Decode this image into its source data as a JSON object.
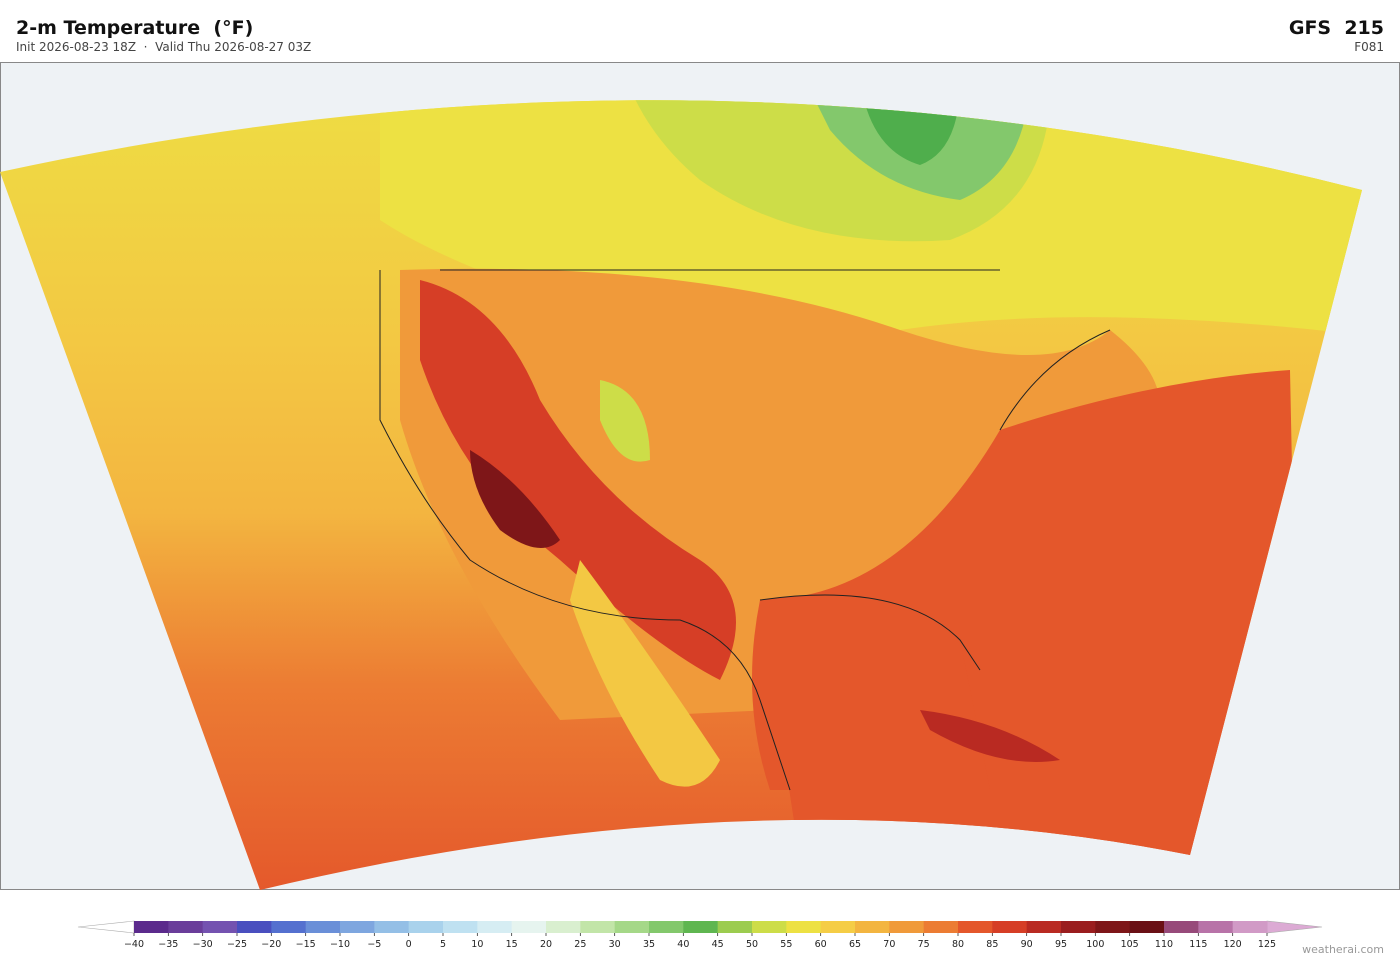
{
  "header": {
    "title": "2-m Temperature  (°F)",
    "subtitle": "Init 2026-08-23 18Z  ·  Valid Thu 2026-08-27 03Z",
    "model": "GFS  215",
    "forecast": "F081"
  },
  "colorbar": {
    "ticks": [
      {
        "value": -40,
        "label": "−40"
      },
      {
        "value": -35,
        "label": "−35"
      },
      {
        "value": -30,
        "label": "−30"
      },
      {
        "value": -25,
        "label": "−25"
      },
      {
        "value": -20,
        "label": "−20"
      },
      {
        "value": -15,
        "label": "−15"
      },
      {
        "value": -10,
        "label": "−10"
      },
      {
        "value": -5,
        "label": "−5"
      },
      0,
      5,
      10,
      15,
      20,
      25,
      30,
      35,
      40,
      45,
      50,
      55,
      60,
      65,
      70,
      75,
      80,
      85,
      90,
      95,
      100,
      105,
      110,
      115,
      120,
      125
    ],
    "colors": [
      "#5b2a8c",
      "#6a3d9a",
      "#7452b0",
      "#4a4fbf",
      "#5470cf",
      "#6a8fd8",
      "#7ea6df",
      "#94bfe6",
      "#a9d2ec",
      "#bfe1f1",
      "#d6edf3",
      "#e6f4ef",
      "#d9efcf",
      "#c2e5a8",
      "#a5d888",
      "#83c86c",
      "#5fb650",
      "#9ccc4f",
      "#cddd48",
      "#ede143",
      "#f5cd46",
      "#f3b540",
      "#f09a3a",
      "#ec7c33",
      "#e4572b",
      "#d63e26",
      "#b92a22",
      "#9a1d1e",
      "#7e1618",
      "#6a1015",
      "#974a7a",
      "#b873a8",
      "#d19ac6"
    ],
    "under_color": "#ffffff",
    "over_color": "#dcaad4"
  },
  "credit": "weatherai.com"
}
